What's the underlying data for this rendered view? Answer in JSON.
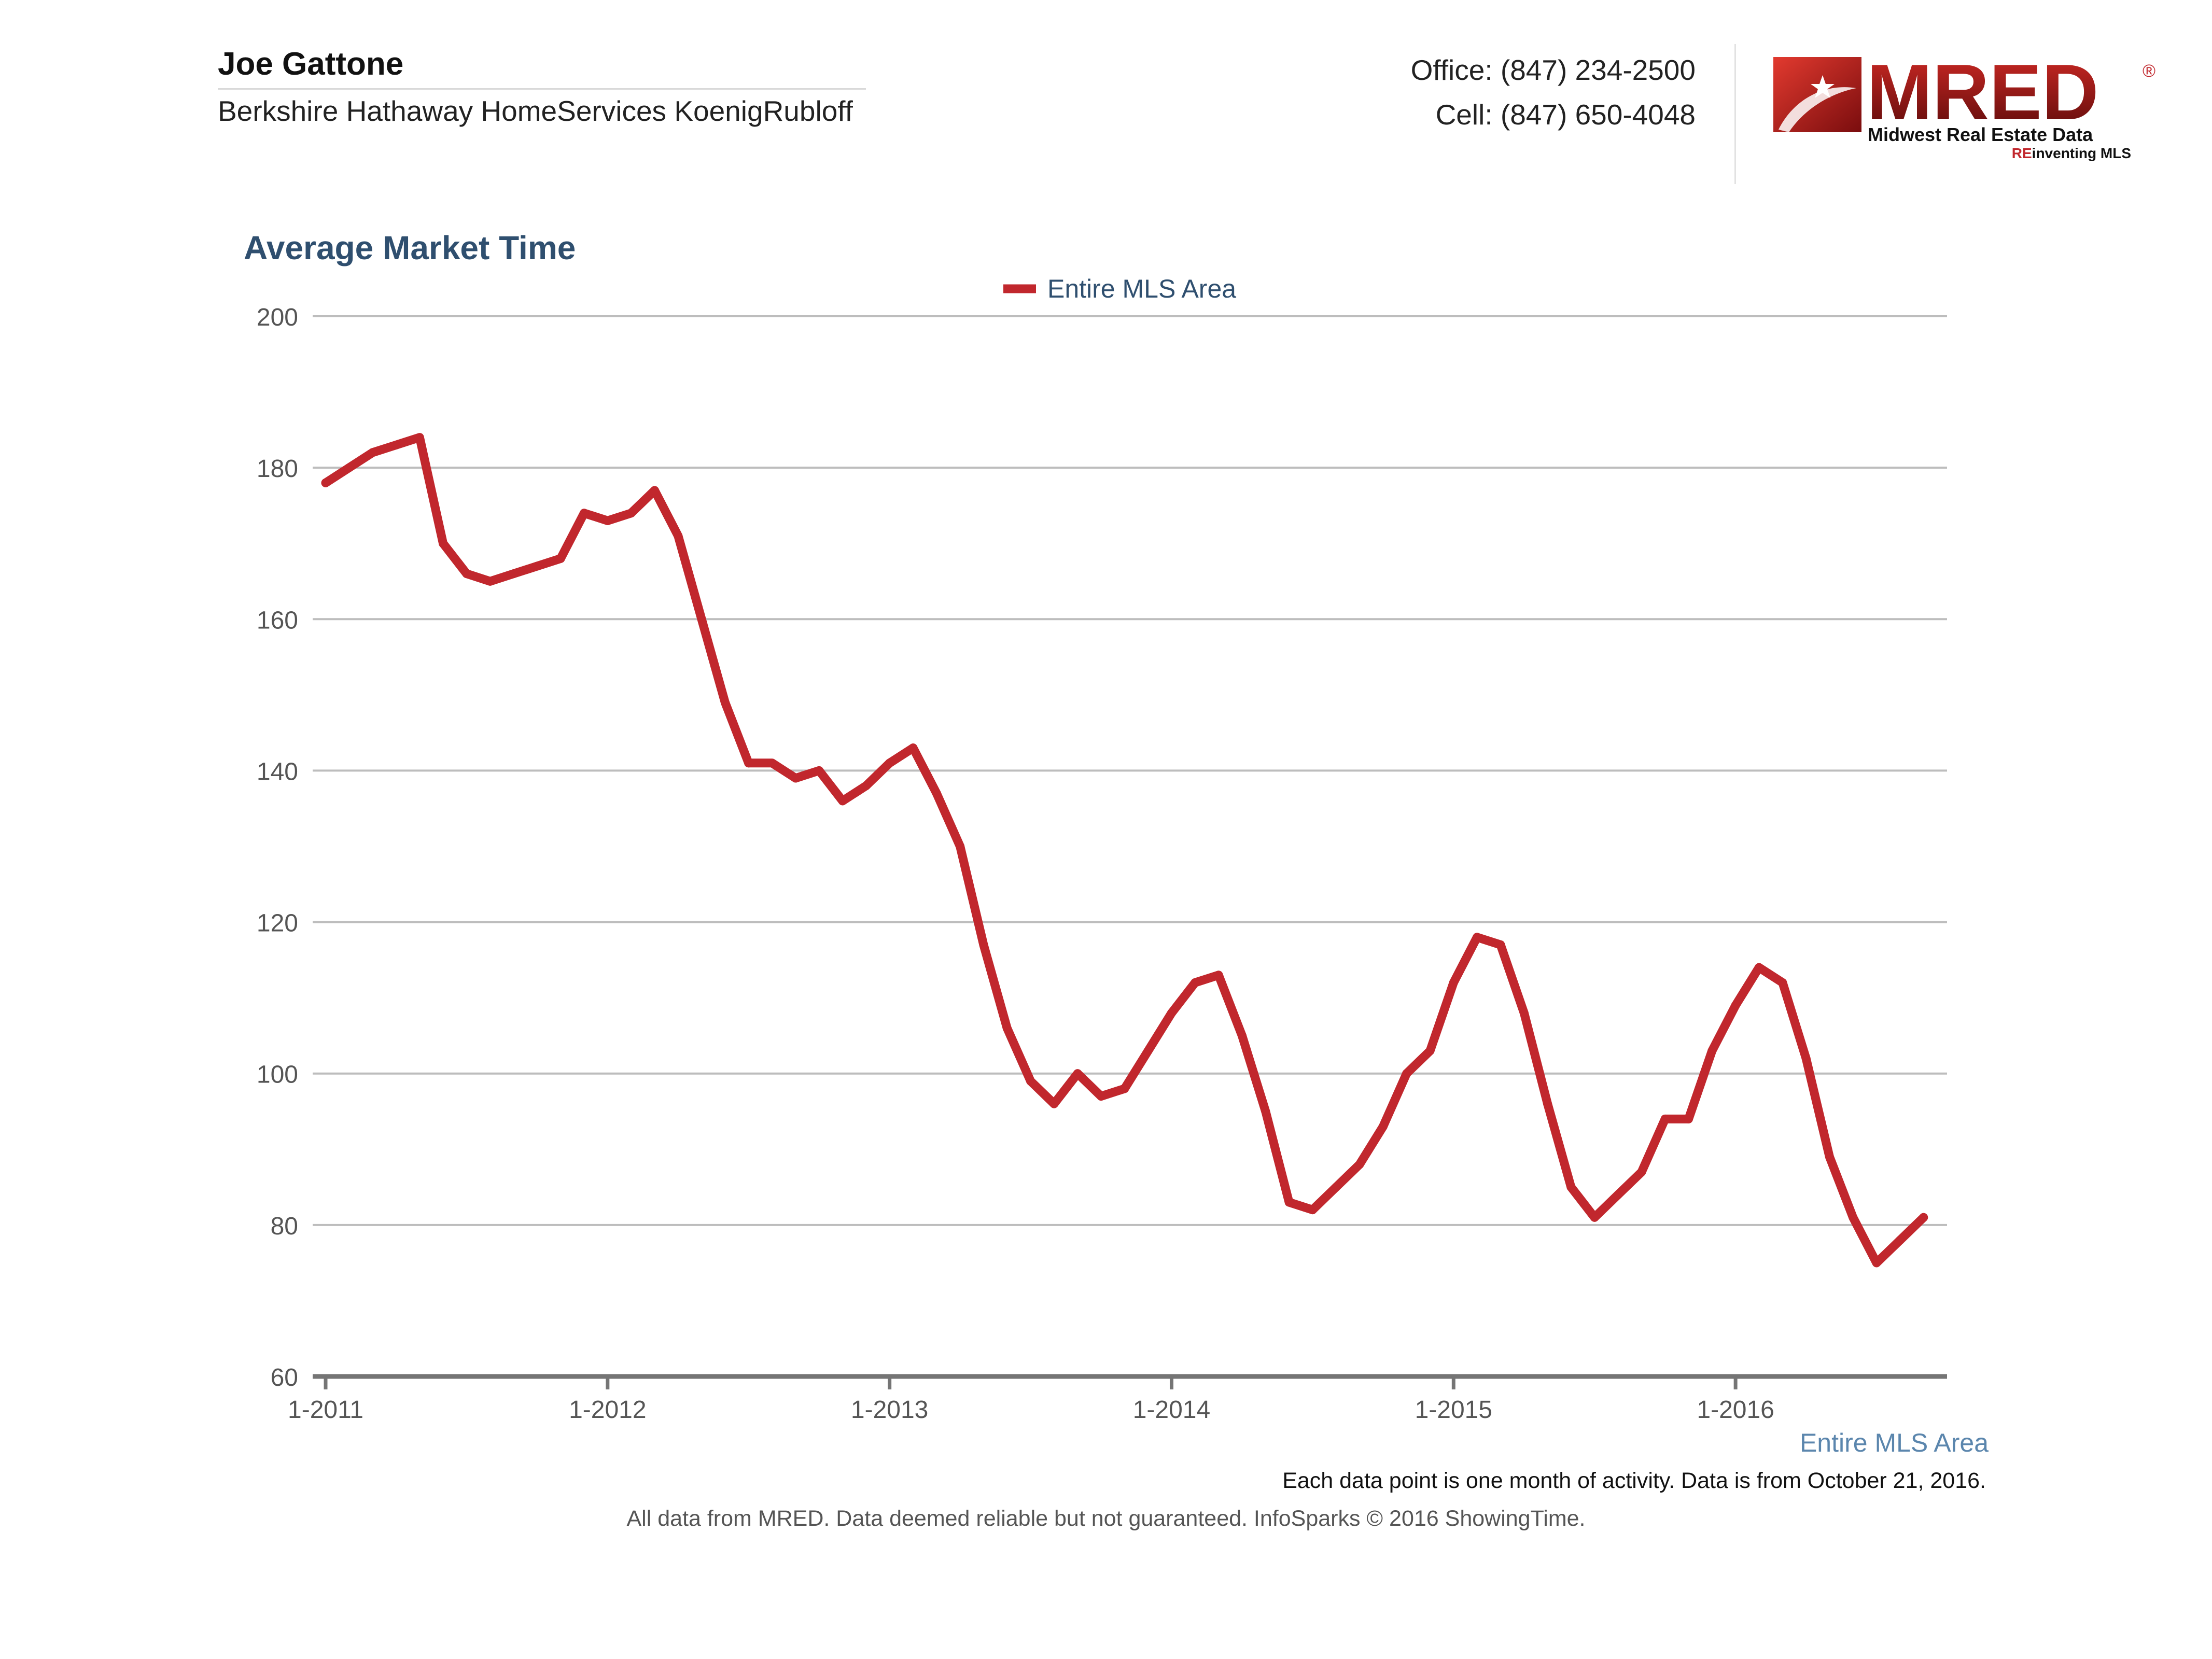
{
  "header": {
    "agent_name": "Joe Gattone",
    "agent_company": "Berkshire Hathaway HomeServices KoenigRubloff",
    "office_phone": "Office: (847) 234-2500",
    "cell_phone": "Cell: (847) 650-4048"
  },
  "logo": {
    "wordmark": "MRED",
    "registered_mark": "®",
    "tagline": "Midwest Real Estate Data",
    "slogan_prefix": "RE",
    "slogan_rest": "inventing MLS",
    "icon": "star-swoosh-icon"
  },
  "chart_data": {
    "type": "line",
    "title": "Average Market Time",
    "xlabel": "",
    "ylabel": "",
    "ylim": [
      60,
      200
    ],
    "yticks": [
      60,
      80,
      100,
      120,
      140,
      160,
      180,
      200
    ],
    "xticks": [
      "1-2011",
      "1-2012",
      "1-2013",
      "1-2014",
      "1-2015",
      "1-2016"
    ],
    "grid": true,
    "legend_position": "top-center",
    "series": [
      {
        "name": "Entire MLS Area",
        "color": "#c1272d",
        "x": [
          "2011-01",
          "2011-02",
          "2011-03",
          "2011-04",
          "2011-05",
          "2011-06",
          "2011-07",
          "2011-08",
          "2011-09",
          "2011-10",
          "2011-11",
          "2011-12",
          "2012-01",
          "2012-02",
          "2012-03",
          "2012-04",
          "2012-05",
          "2012-06",
          "2012-07",
          "2012-08",
          "2012-09",
          "2012-10",
          "2012-11",
          "2012-12",
          "2013-01",
          "2013-02",
          "2013-03",
          "2013-04",
          "2013-05",
          "2013-06",
          "2013-07",
          "2013-08",
          "2013-09",
          "2013-10",
          "2013-11",
          "2013-12",
          "2014-01",
          "2014-02",
          "2014-03",
          "2014-04",
          "2014-05",
          "2014-06",
          "2014-07",
          "2014-08",
          "2014-09",
          "2014-10",
          "2014-11",
          "2014-12",
          "2015-01",
          "2015-02",
          "2015-03",
          "2015-04",
          "2015-05",
          "2015-06",
          "2015-07",
          "2015-08",
          "2015-09",
          "2015-10",
          "2015-11",
          "2015-12",
          "2016-01",
          "2016-02",
          "2016-03",
          "2016-04",
          "2016-05",
          "2016-06",
          "2016-07",
          "2016-08",
          "2016-09"
        ],
        "values": [
          178,
          180,
          182,
          183,
          184,
          170,
          166,
          165,
          166,
          167,
          168,
          174,
          173,
          174,
          177,
          171,
          160,
          149,
          141,
          141,
          139,
          140,
          136,
          138,
          141,
          143,
          137,
          130,
          117,
          106,
          99,
          96,
          100,
          97,
          98,
          103,
          108,
          112,
          113,
          105,
          95,
          83,
          82,
          85,
          88,
          93,
          100,
          103,
          112,
          118,
          117,
          108,
          96,
          85,
          81,
          84,
          87,
          94,
          94,
          103,
          109,
          114,
          112,
          102,
          89,
          81,
          75,
          78,
          81
        ]
      }
    ],
    "axis_series_label": "Entire MLS Area",
    "note": "Each data point is one month of activity. Data is from October 21, 2016.",
    "footer": "All data from MRED. Data deemed reliable but not guaranteed. InfoSparks © 2016 ShowingTime."
  }
}
